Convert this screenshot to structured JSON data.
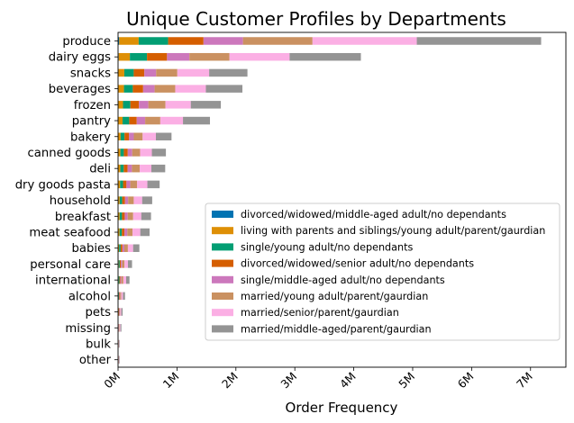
{
  "chart_data": {
    "type": "bar",
    "orientation": "horizontal",
    "stacked": true,
    "title": "Unique Customer Profiles by Departments",
    "xlabel": "Order Frequency",
    "ylabel": "",
    "xlim": [
      0,
      7600000
    ],
    "xticks": [
      0,
      1000000,
      2000000,
      3000000,
      4000000,
      5000000,
      6000000,
      7000000
    ],
    "xtick_labels": [
      "0M",
      "1M",
      "2M",
      "3M",
      "4M",
      "5M",
      "6M",
      "7M"
    ],
    "grid": false,
    "legend_position": "lower-right",
    "categories": [
      "produce",
      "dairy eggs",
      "snacks",
      "beverages",
      "frozen",
      "pantry",
      "bakery",
      "canned goods",
      "deli",
      "dry goods pasta",
      "household",
      "breakfast",
      "meat seafood",
      "babies",
      "personal care",
      "international",
      "alcohol",
      "pets",
      "missing",
      "bulk",
      "other"
    ],
    "series": [
      {
        "name": "divorced/widowed/middle-aged adult/no dependants",
        "color": "#0173b2",
        "values": [
          20000,
          11000,
          6000,
          5500,
          4500,
          4000,
          2400,
          2100,
          2100,
          1800,
          1500,
          1400,
          1400,
          1000,
          600,
          500,
          300,
          200,
          140,
          70,
          70
        ]
      },
      {
        "name": "living with parents and siblings/young adult/parent/gaurdian",
        "color": "#de8f05",
        "values": [
          330000,
          190000,
          100000,
          95000,
          80000,
          73000,
          42000,
          38000,
          37000,
          33000,
          27000,
          26000,
          25000,
          17000,
          11000,
          9000,
          5500,
          3500,
          2600,
          1300,
          1300
        ]
      },
      {
        "name": "single/young adult/no dependants",
        "color": "#029e73",
        "values": [
          500000,
          290000,
          160000,
          150000,
          125000,
          112000,
          65000,
          58000,
          57000,
          50000,
          42000,
          40000,
          38000,
          26000,
          17000,
          14000,
          8500,
          5500,
          4000,
          2000,
          2000
        ]
      },
      {
        "name": "divorced/widowed/senior adult/no dependants",
        "color": "#d55e00",
        "values": [
          600000,
          340000,
          180000,
          175000,
          145000,
          128000,
          75000,
          67000,
          66000,
          58000,
          48000,
          46000,
          44000,
          30000,
          20000,
          16000,
          10000,
          6500,
          4700,
          2300,
          2300
        ]
      },
      {
        "name": "single/middle-aged adult/no dependants",
        "color": "#cc78bc",
        "values": [
          670000,
          380000,
          200000,
          195000,
          160000,
          143000,
          83000,
          75000,
          73000,
          65000,
          53000,
          51000,
          49000,
          33000,
          22000,
          18000,
          11000,
          7200,
          5200,
          2600,
          2600
        ]
      },
      {
        "name": "married/young adult/parent/gaurdian",
        "color": "#ca9161",
        "values": [
          1180000,
          680000,
          360000,
          350000,
          290000,
          257000,
          150000,
          134000,
          132000,
          116000,
          95000,
          92000,
          88000,
          60000,
          39000,
          32000,
          19000,
          13000,
          9300,
          4700,
          4700
        ]
      },
      {
        "name": "married/senior/parent/gaurdian",
        "color": "#fbafe4",
        "values": [
          1770000,
          1020000,
          540000,
          520000,
          430000,
          385000,
          225000,
          200000,
          198000,
          174000,
          143000,
          138000,
          132000,
          89000,
          58000,
          48000,
          29000,
          19000,
          14000,
          7000,
          7000
        ]
      },
      {
        "name": "married/middle-aged/parent/gaurdian",
        "color": "#949494",
        "values": [
          2110000,
          1210000,
          650000,
          620000,
          510000,
          458000,
          265000,
          238000,
          235000,
          208000,
          170000,
          165000,
          158000,
          106000,
          70000,
          57000,
          35000,
          23000,
          17000,
          8300,
          8300
        ]
      }
    ]
  }
}
